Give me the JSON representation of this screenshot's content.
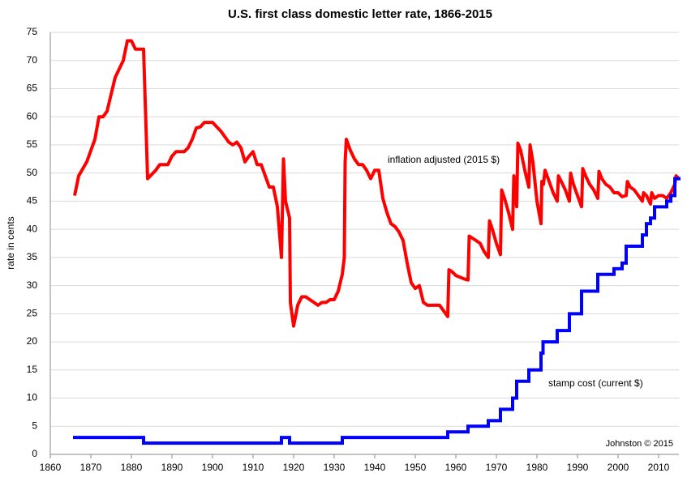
{
  "chart_data": {
    "type": "line",
    "title": "U.S. first class domestic letter rate, 1866-2015",
    "ylabel": "rate in cents",
    "annotations": [
      "inflation adjusted (2015  $)",
      "stamp cost (current $)",
      "Johnston © 2015"
    ],
    "xlim": [
      1860,
      2015
    ],
    "xticks": [
      1860,
      1870,
      1880,
      1890,
      1900,
      1910,
      1920,
      1930,
      1940,
      1950,
      1960,
      1970,
      1980,
      1990,
      2000,
      2010
    ],
    "ylim": [
      0,
      75
    ],
    "yticks": [
      0,
      5,
      10,
      15,
      20,
      25,
      30,
      35,
      40,
      45,
      50,
      55,
      60,
      65,
      70,
      75
    ],
    "grid": true,
    "series": [
      {
        "color": "#ff0000",
        "step": false,
        "x": [
          1866,
          1867,
          1869,
          1871,
          1872,
          1873,
          1874,
          1876,
          1878,
          1879,
          1880,
          1881,
          1883,
          1884,
          1886,
          1887,
          1889,
          1890,
          1891,
          1893,
          1894,
          1895,
          1896,
          1897,
          1898,
          1900,
          1902,
          1903,
          1904,
          1905,
          1906,
          1907,
          1908,
          1909,
          1910,
          1911,
          1912,
          1913,
          1914,
          1915,
          1916,
          1917,
          1917.5,
          1918,
          1919,
          1919.2,
          1920,
          1921,
          1922,
          1923,
          1924,
          1925,
          1926,
          1927,
          1928,
          1929,
          1930,
          1931,
          1932,
          1932.5,
          1932.7,
          1933,
          1934,
          1935,
          1936,
          1937,
          1938,
          1939,
          1940,
          1941,
          1942,
          1943,
          1944,
          1945,
          1946,
          1947,
          1948,
          1949,
          1950,
          1951,
          1952,
          1953,
          1954,
          1955,
          1956,
          1957,
          1958,
          1958.3,
          1959,
          1960,
          1961,
          1962,
          1963,
          1963.3,
          1965,
          1966,
          1967,
          1968,
          1968.3,
          1969,
          1970,
          1971,
          1971.3,
          1972,
          1973,
          1974,
          1974.3,
          1975,
          1975.3,
          1976,
          1977,
          1978,
          1978.3,
          1979,
          1980,
          1981,
          1981.2,
          1981.6,
          1982,
          1983,
          1984,
          1985,
          1985.3,
          1986,
          1987,
          1988,
          1988.3,
          1989,
          1990,
          1991,
          1991.3,
          1992,
          1993,
          1994,
          1995,
          1995.3,
          1996,
          1997,
          1998,
          1999,
          2000,
          2001,
          2002,
          2002.3,
          2003,
          2004,
          2005,
          2006,
          2006.3,
          2007,
          2008,
          2008.3,
          2009,
          2010,
          2011,
          2012,
          2013,
          2014,
          2014.3,
          2015
        ],
        "values": [
          46,
          49.5,
          52,
          56,
          60,
          60,
          61,
          67,
          70,
          73.5,
          73.5,
          72,
          72,
          49,
          50.5,
          51.5,
          51.5,
          53,
          53.8,
          53.8,
          54.5,
          56,
          58,
          58.2,
          59,
          59,
          57.5,
          56.5,
          55.5,
          55,
          55.5,
          54.5,
          52,
          53,
          53.8,
          51.5,
          51.5,
          49.5,
          47.5,
          47.5,
          44,
          35,
          52.5,
          45,
          42,
          27,
          22.8,
          26.5,
          28,
          28,
          27.5,
          27,
          26.5,
          27,
          27,
          27.5,
          27.5,
          29,
          32,
          35,
          52,
          56,
          54,
          52.5,
          51.5,
          51.5,
          50.5,
          49,
          50.5,
          50.5,
          45.5,
          43,
          41,
          40.5,
          39.5,
          38,
          34,
          30.5,
          29.5,
          30,
          27,
          26.5,
          26.5,
          26.5,
          26.5,
          25.5,
          24.5,
          32.8,
          32.5,
          31.8,
          31.5,
          31.2,
          31,
          38.8,
          38,
          37.5,
          36,
          35,
          41.5,
          40,
          37.5,
          35.5,
          47,
          45.5,
          43,
          40,
          49.5,
          44,
          55.3,
          54,
          50.5,
          47.5,
          55,
          52,
          45,
          41,
          48.5,
          48,
          50.5,
          48.5,
          46.5,
          45,
          49.5,
          48.5,
          47,
          45,
          50,
          48,
          46,
          44,
          50.8,
          49.5,
          48,
          47,
          45.5,
          50.3,
          49,
          48,
          47.5,
          46.5,
          46.5,
          45.8,
          46,
          48.5,
          47.5,
          47,
          46,
          45,
          46.5,
          46,
          44.5,
          46.5,
          45.5,
          46,
          46,
          45.5,
          46.5,
          48,
          49.5,
          49
        ]
      },
      {
        "color": "#0000ff",
        "step": true,
        "x": [
          1866,
          1883,
          1917,
          1919,
          1932,
          1958,
          1963,
          1968,
          1971,
          1974,
          1975,
          1978,
          1981,
          1981.5,
          1985,
          1988,
          1991,
          1995,
          1999,
          2001,
          2002,
          2006,
          2007,
          2008,
          2009,
          2012,
          2013,
          2014
        ],
        "values": [
          3,
          2,
          3,
          2,
          3,
          4,
          5,
          6,
          8,
          10,
          13,
          15,
          18,
          20,
          22,
          25,
          29,
          32,
          33,
          34,
          37,
          39,
          41,
          42,
          44,
          45,
          46,
          49
        ]
      }
    ]
  }
}
